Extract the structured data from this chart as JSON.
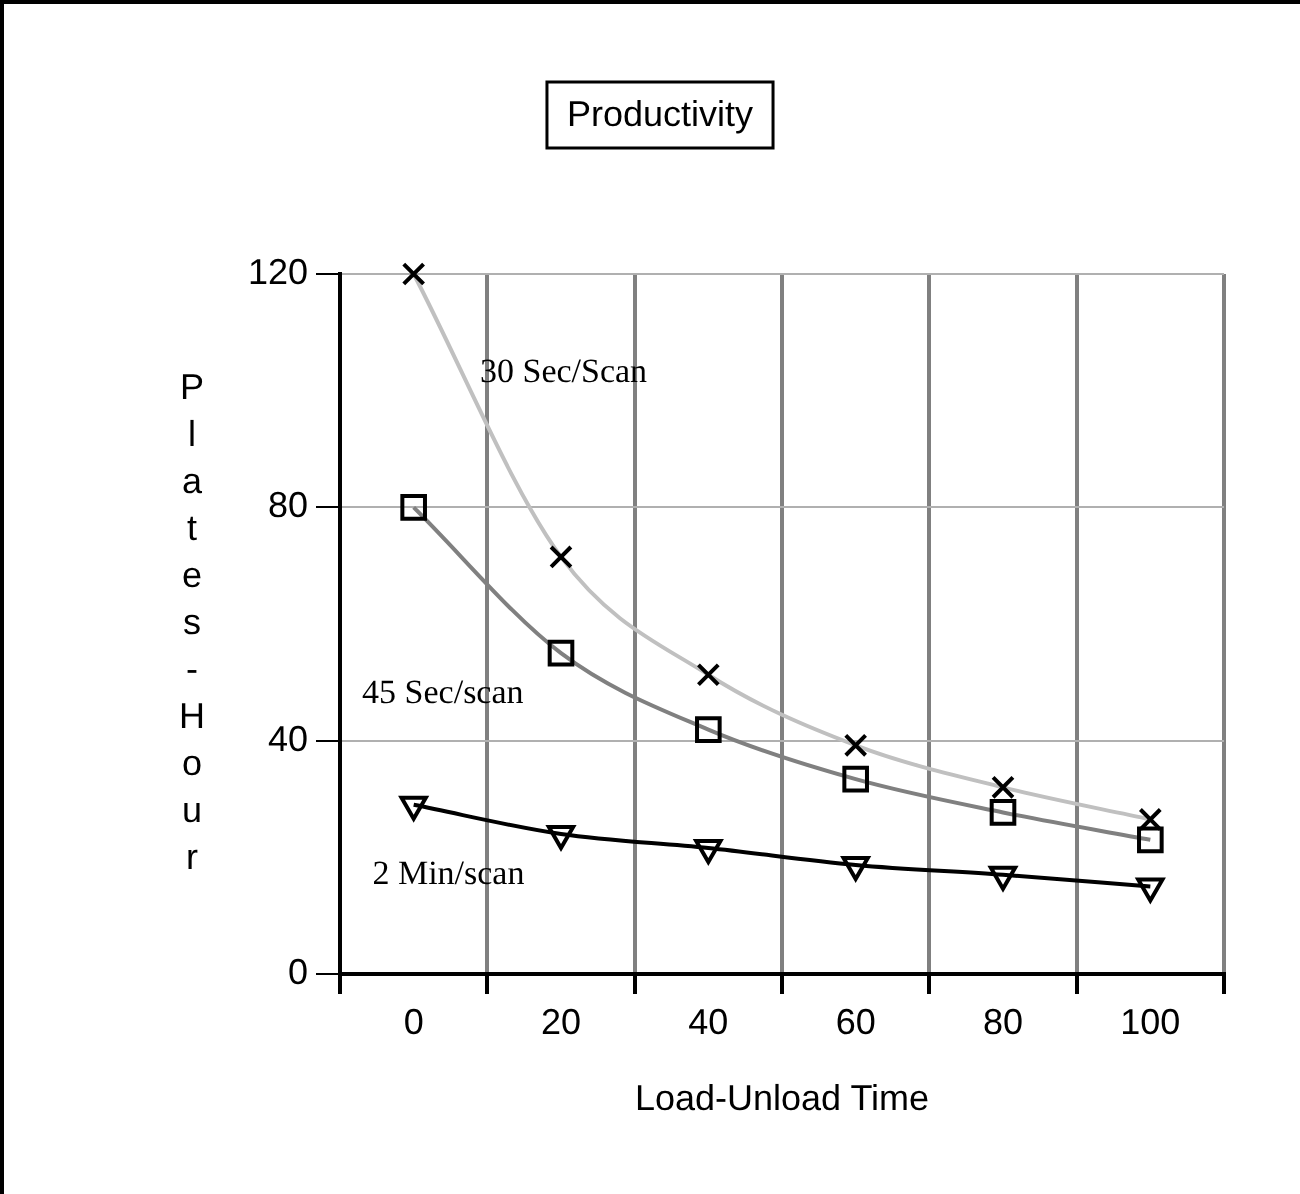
{
  "chart_data": {
    "type": "line",
    "title": "Productivity",
    "xlabel": "Load-Unload Time",
    "ylabel": "Plates-Hour",
    "categories": [
      "0",
      "20",
      "40",
      "60",
      "80",
      "100"
    ],
    "series": [
      {
        "name": "30 Sec/Scan",
        "color": "#c0c0c0",
        "marker": "cross",
        "values": [
          120,
          71.5,
          51.3,
          39.2,
          32,
          26.5
        ]
      },
      {
        "name": "45 Sec/scan",
        "color": "#808080",
        "marker": "square",
        "values": [
          80,
          55,
          41.9,
          33.4,
          27.7,
          23
        ]
      },
      {
        "name": "2 Min/scan",
        "color": "#000000",
        "marker": "triangle",
        "values": [
          29,
          24,
          21.6,
          18.7,
          17,
          15
        ]
      }
    ],
    "ylim": [
      0,
      120
    ],
    "yticks": [
      0,
      40,
      80,
      120
    ],
    "grid": true,
    "legend": false,
    "line_style": "solid"
  }
}
